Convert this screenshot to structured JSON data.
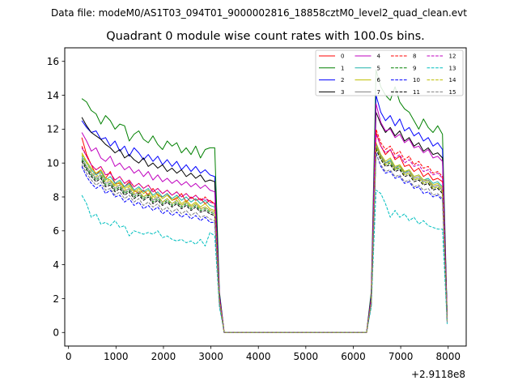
{
  "figure": {
    "suptitle": "Data file: modeM0/AS1T03_094T01_9000002816_18858cztM0_level2_quad_clean.evt"
  },
  "chart_data": {
    "type": "line",
    "title": "Quadrant 0 module wise count rates with 100.0s bins.",
    "xlabel": "",
    "ylabel": "",
    "x_offset_label": "+2.9118e8",
    "xlim": [
      -80,
      8380
    ],
    "ylim": [
      -0.8,
      16.8
    ],
    "xticks": [
      0,
      1000,
      2000,
      3000,
      4000,
      5000,
      6000,
      7000,
      8000
    ],
    "yticks": [
      0,
      2,
      4,
      6,
      8,
      10,
      12,
      14,
      16
    ],
    "legend_position": "upper right",
    "legend_columns": 4,
    "x": [
      280,
      380,
      480,
      580,
      680,
      780,
      880,
      980,
      1080,
      1180,
      1280,
      1380,
      1480,
      1580,
      1680,
      1780,
      1880,
      1980,
      2080,
      2180,
      2280,
      2380,
      2480,
      2580,
      2680,
      2780,
      2880,
      2980,
      3080,
      3180,
      3280,
      6280,
      6380,
      6480,
      6580,
      6680,
      6780,
      6880,
      6980,
      7080,
      7180,
      7280,
      7380,
      7480,
      7580,
      7680,
      7780,
      7880,
      7980
    ],
    "series": [
      {
        "name": "0",
        "color": "#ff0000",
        "dash": "solid",
        "values": [
          11.5,
          10.5,
          9.9,
          9.3,
          9.6,
          9.1,
          9.5,
          8.8,
          8.8,
          8.6,
          8.9,
          8.4,
          8.2,
          8.4,
          8.1,
          8.5,
          8.1,
          8.0,
          8.2,
          7.8,
          7.9,
          8.2,
          7.7,
          8.0,
          7.8,
          7.9,
          7.6,
          7.8,
          7.6,
          2.0,
          0.0,
          0.0,
          2.0,
          11.8,
          11.0,
          10.5,
          10.8,
          10.2,
          10.4,
          9.8,
          9.9,
          9.5,
          9.7,
          9.2,
          9.4,
          9.0,
          9.1,
          8.9,
          0.8
        ]
      },
      {
        "name": "1",
        "color": "#008000",
        "dash": "solid",
        "values": [
          13.8,
          13.6,
          13.1,
          12.9,
          12.3,
          12.8,
          12.5,
          12.0,
          12.3,
          12.2,
          11.3,
          11.7,
          11.9,
          11.4,
          11.2,
          11.6,
          11.1,
          10.8,
          11.3,
          11.0,
          11.2,
          10.6,
          10.9,
          10.5,
          11.0,
          10.3,
          10.8,
          10.9,
          10.9,
          2.4,
          0.0,
          0.0,
          2.4,
          15.5,
          14.5,
          14.0,
          13.7,
          14.5,
          13.6,
          13.2,
          13.0,
          12.5,
          12.0,
          12.6,
          12.1,
          11.8,
          12.2,
          11.7,
          1.0
        ]
      },
      {
        "name": "2",
        "color": "#0000ff",
        "dash": "solid",
        "values": [
          12.5,
          12.1,
          11.8,
          11.9,
          11.4,
          11.5,
          11.0,
          11.3,
          10.7,
          11.0,
          10.4,
          10.9,
          10.6,
          10.2,
          10.5,
          10.1,
          10.4,
          9.9,
          10.2,
          9.8,
          10.1,
          9.6,
          9.9,
          9.5,
          9.8,
          9.4,
          9.6,
          9.3,
          9.2,
          2.3,
          0.0,
          0.0,
          2.2,
          14.0,
          13.0,
          12.5,
          12.8,
          12.2,
          12.6,
          11.9,
          12.1,
          11.6,
          11.8,
          11.3,
          11.5,
          11.0,
          11.2,
          10.8,
          0.9
        ]
      },
      {
        "name": "3",
        "color": "#000000",
        "dash": "solid",
        "values": [
          12.7,
          12.2,
          11.8,
          11.6,
          11.4,
          11.1,
          10.9,
          10.6,
          10.8,
          10.3,
          10.5,
          10.2,
          10.0,
          10.3,
          9.8,
          10.0,
          9.7,
          9.9,
          9.5,
          9.7,
          9.4,
          9.6,
          9.2,
          9.4,
          9.1,
          9.3,
          8.9,
          9.0,
          8.9,
          2.2,
          0.0,
          0.0,
          2.1,
          13.0,
          12.3,
          11.8,
          12.1,
          11.6,
          11.9,
          11.3,
          11.5,
          11.0,
          11.2,
          10.7,
          10.9,
          10.5,
          10.6,
          10.3,
          0.9
        ]
      },
      {
        "name": "4",
        "color": "#bf00bf",
        "dash": "solid",
        "values": [
          11.8,
          11.3,
          10.7,
          10.9,
          10.3,
          10.1,
          10.4,
          9.8,
          10.0,
          9.6,
          9.8,
          9.4,
          9.6,
          9.2,
          9.5,
          9.0,
          9.3,
          8.9,
          9.1,
          8.8,
          9.0,
          8.7,
          8.9,
          8.6,
          8.8,
          8.5,
          8.7,
          8.4,
          8.3,
          2.1,
          0.0,
          0.0,
          2.0,
          13.5,
          12.4,
          11.9,
          12.0,
          11.5,
          11.7,
          11.2,
          11.4,
          10.9,
          11.0,
          10.6,
          10.8,
          10.3,
          10.4,
          10.1,
          0.8
        ]
      },
      {
        "name": "5",
        "color": "#20b2aa",
        "dash": "solid",
        "values": [
          10.4,
          10.0,
          9.6,
          9.3,
          9.5,
          9.0,
          9.2,
          8.8,
          9.0,
          8.6,
          8.8,
          8.4,
          8.6,
          8.3,
          8.5,
          8.1,
          8.3,
          8.0,
          8.2,
          7.9,
          8.1,
          7.8,
          8.0,
          7.7,
          7.9,
          7.6,
          7.8,
          7.5,
          7.4,
          1.9,
          0.0,
          0.0,
          1.8,
          11.0,
          10.4,
          10.0,
          10.2,
          9.7,
          9.9,
          9.4,
          9.6,
          9.2,
          9.3,
          9.0,
          9.1,
          8.8,
          8.9,
          8.6,
          0.7
        ]
      },
      {
        "name": "6",
        "color": "#bfbf00",
        "dash": "solid",
        "values": [
          10.6,
          10.1,
          9.7,
          9.4,
          9.6,
          9.1,
          9.0,
          8.7,
          8.9,
          8.5,
          8.7,
          8.3,
          8.5,
          8.2,
          8.4,
          8.0,
          8.2,
          7.9,
          8.1,
          7.8,
          8.0,
          7.6,
          7.8,
          7.5,
          7.7,
          7.4,
          7.6,
          7.3,
          7.2,
          1.9,
          0.0,
          0.0,
          1.8,
          11.2,
          10.5,
          10.1,
          10.3,
          9.8,
          9.9,
          9.5,
          9.6,
          9.2,
          9.3,
          9.0,
          9.0,
          8.7,
          8.8,
          8.5,
          0.7
        ]
      },
      {
        "name": "7",
        "color": "#808080",
        "dash": "solid",
        "values": [
          10.3,
          9.8,
          9.4,
          9.1,
          9.3,
          8.8,
          8.9,
          8.5,
          8.7,
          8.3,
          8.5,
          8.1,
          8.3,
          8.0,
          8.2,
          7.8,
          8.0,
          7.7,
          7.9,
          7.6,
          7.8,
          7.5,
          7.7,
          7.4,
          7.6,
          7.3,
          7.4,
          7.2,
          7.1,
          1.8,
          0.0,
          0.0,
          1.8,
          11.1,
          10.4,
          10.0,
          10.1,
          9.7,
          9.8,
          9.4,
          9.5,
          9.1,
          9.2,
          8.9,
          9.0,
          8.6,
          8.7,
          8.4,
          0.7
        ]
      },
      {
        "name": "8",
        "color": "#ff0000",
        "dash": "dashed",
        "values": [
          11.0,
          10.4,
          9.9,
          9.6,
          9.8,
          9.3,
          9.4,
          9.0,
          9.2,
          8.8,
          9.0,
          8.6,
          8.8,
          8.5,
          8.7,
          8.3,
          8.5,
          8.2,
          8.4,
          8.1,
          8.3,
          8.0,
          8.2,
          7.9,
          8.1,
          7.8,
          8.0,
          7.7,
          7.6,
          2.0,
          0.0,
          0.0,
          1.9,
          12.0,
          11.2,
          10.8,
          11.0,
          10.5,
          10.7,
          10.2,
          10.4,
          9.9,
          10.1,
          9.7,
          9.8,
          9.4,
          9.5,
          9.2,
          0.8
        ]
      },
      {
        "name": "9",
        "color": "#008000",
        "dash": "dashed",
        "values": [
          10.2,
          9.7,
          9.3,
          9.0,
          9.2,
          8.7,
          8.8,
          8.4,
          8.6,
          8.2,
          8.4,
          8.0,
          8.2,
          7.9,
          8.1,
          7.7,
          7.9,
          7.6,
          7.8,
          7.5,
          7.7,
          7.4,
          7.6,
          7.3,
          7.5,
          7.2,
          7.3,
          7.1,
          7.0,
          1.8,
          0.0,
          0.0,
          1.7,
          10.9,
          10.3,
          9.9,
          10.0,
          9.6,
          9.7,
          9.3,
          9.4,
          9.0,
          9.1,
          8.8,
          8.9,
          8.5,
          8.6,
          8.3,
          0.7
        ]
      },
      {
        "name": "10",
        "color": "#0000ff",
        "dash": "dashed",
        "values": [
          9.8,
          9.2,
          8.8,
          8.5,
          8.7,
          8.2,
          8.4,
          8.0,
          8.1,
          7.7,
          7.9,
          7.5,
          7.7,
          7.3,
          7.5,
          7.2,
          7.4,
          7.0,
          7.2,
          6.9,
          7.1,
          6.8,
          7.0,
          6.7,
          6.9,
          6.6,
          6.8,
          6.5,
          6.5,
          1.7,
          0.0,
          0.0,
          1.6,
          10.6,
          9.8,
          9.4,
          9.5,
          9.1,
          9.2,
          8.8,
          8.9,
          8.5,
          8.6,
          8.2,
          8.3,
          8.0,
          8.1,
          7.8,
          0.6
        ]
      },
      {
        "name": "11",
        "color": "#000000",
        "dash": "dashed",
        "values": [
          10.1,
          9.6,
          9.2,
          8.9,
          9.1,
          8.6,
          8.7,
          8.3,
          8.5,
          8.1,
          8.3,
          7.9,
          8.1,
          7.8,
          8.0,
          7.6,
          7.8,
          7.5,
          7.7,
          7.4,
          7.6,
          7.3,
          7.5,
          7.2,
          7.4,
          7.1,
          7.2,
          7.0,
          6.9,
          1.8,
          0.0,
          0.0,
          1.7,
          10.8,
          10.2,
          9.8,
          9.9,
          9.5,
          9.6,
          9.2,
          9.3,
          8.9,
          9.0,
          8.7,
          8.8,
          8.4,
          8.5,
          8.2,
          0.7
        ]
      },
      {
        "name": "12",
        "color": "#bf00bf",
        "dash": "dashed",
        "values": [
          10.9,
          10.4,
          9.9,
          9.6,
          9.8,
          9.3,
          9.4,
          9.0,
          9.2,
          8.8,
          9.0,
          8.6,
          8.8,
          8.5,
          8.7,
          8.3,
          8.5,
          8.2,
          8.4,
          8.1,
          8.3,
          8.0,
          8.2,
          7.9,
          8.1,
          7.8,
          7.9,
          7.7,
          7.6,
          2.0,
          0.0,
          0.0,
          1.9,
          11.7,
          11.0,
          10.6,
          10.8,
          10.3,
          10.5,
          10.0,
          10.2,
          9.8,
          9.9,
          9.5,
          9.6,
          9.3,
          9.4,
          9.1,
          0.8
        ]
      },
      {
        "name": "13",
        "color": "#00bfbf",
        "dash": "dashed",
        "values": [
          8.1,
          7.6,
          6.8,
          7.0,
          6.4,
          6.5,
          6.3,
          6.6,
          6.2,
          6.3,
          5.7,
          6.0,
          5.9,
          5.8,
          5.9,
          5.8,
          6.0,
          5.6,
          5.7,
          5.5,
          5.4,
          5.5,
          5.3,
          5.4,
          5.2,
          5.5,
          5.1,
          5.9,
          5.7,
          1.5,
          0.0,
          0.0,
          1.5,
          8.4,
          8.2,
          7.6,
          6.8,
          7.2,
          6.8,
          7.0,
          6.6,
          6.8,
          6.4,
          6.6,
          6.3,
          6.2,
          6.1,
          6.1,
          0.5
        ]
      },
      {
        "name": "14",
        "color": "#bfbf00",
        "dash": "dashed",
        "values": [
          10.5,
          10.0,
          9.5,
          9.2,
          9.4,
          8.9,
          9.0,
          8.6,
          8.8,
          8.4,
          8.6,
          8.2,
          8.4,
          8.0,
          8.2,
          7.9,
          8.1,
          7.7,
          7.9,
          7.6,
          7.8,
          7.5,
          7.7,
          7.4,
          7.6,
          7.3,
          7.4,
          7.2,
          7.1,
          1.9,
          0.0,
          0.0,
          1.8,
          11.0,
          10.3,
          9.9,
          10.1,
          9.6,
          9.8,
          9.3,
          9.4,
          9.0,
          9.1,
          8.8,
          8.9,
          8.5,
          8.6,
          8.3,
          0.7
        ]
      },
      {
        "name": "15",
        "color": "#808080",
        "dash": "dashed",
        "values": [
          9.9,
          9.4,
          9.0,
          8.7,
          8.9,
          8.4,
          8.5,
          8.1,
          8.3,
          7.9,
          8.1,
          7.7,
          7.9,
          7.5,
          7.7,
          7.4,
          7.6,
          7.2,
          7.4,
          7.1,
          7.3,
          7.0,
          7.2,
          6.9,
          7.1,
          6.8,
          6.9,
          6.7,
          6.6,
          1.7,
          0.0,
          0.0,
          1.7,
          10.5,
          9.9,
          9.5,
          9.6,
          9.2,
          9.3,
          8.9,
          9.0,
          8.6,
          8.7,
          8.4,
          8.5,
          8.1,
          8.2,
          7.9,
          0.6
        ]
      }
    ]
  }
}
